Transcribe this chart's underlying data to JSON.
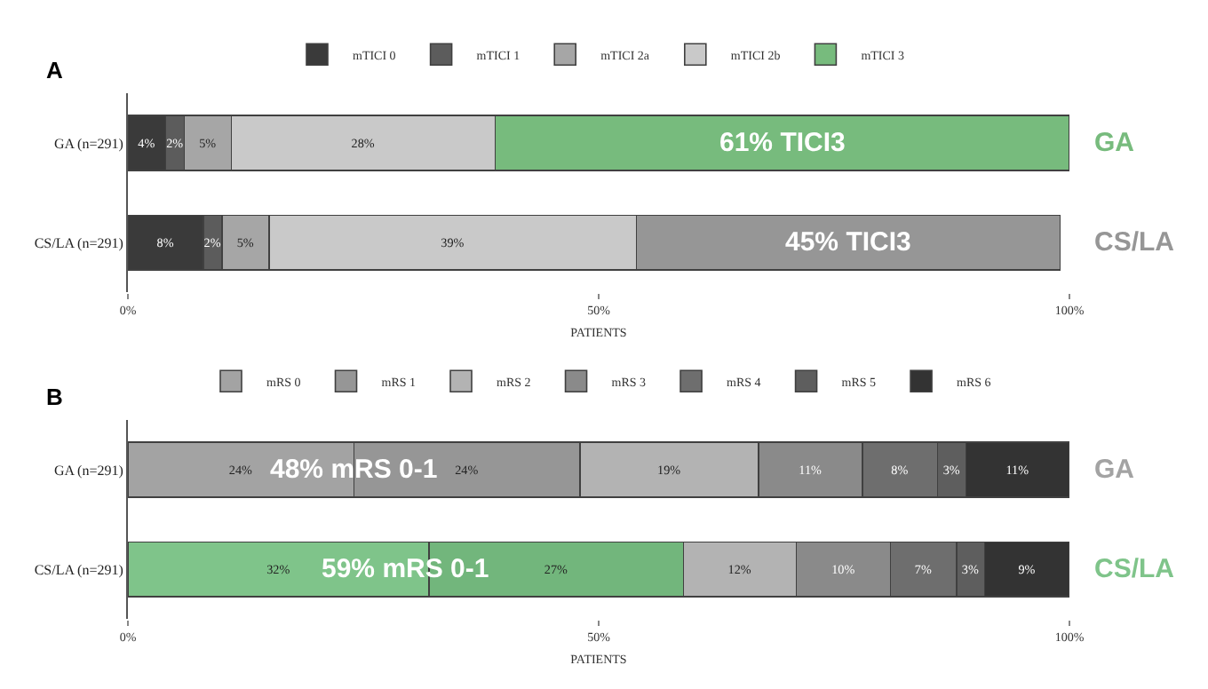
{
  "chart_data": [
    {
      "type": "bar",
      "orientation": "horizontal",
      "stacked": true,
      "title": "A",
      "xlabel": "PATIENTS",
      "categories": [
        "GA (n=291)",
        "CS/LA (n=291)"
      ],
      "xlim": [
        0,
        100
      ],
      "xticks": [
        {
          "value": 0,
          "label": "0%"
        },
        {
          "value": 50,
          "label": "50%"
        },
        {
          "value": 100,
          "label": "100%"
        }
      ],
      "legend": "top",
      "series": [
        {
          "name": "mTICI 0",
          "colors": [
            "#3a3a3a",
            "#3a3a3a"
          ],
          "values": [
            4,
            8
          ],
          "value_labels": [
            "4%",
            "8%"
          ]
        },
        {
          "name": "mTICI 1",
          "colors": [
            "#5c5c5c",
            "#5c5c5c"
          ],
          "values": [
            2,
            2
          ],
          "value_labels": [
            "2%",
            "2%"
          ]
        },
        {
          "name": "mTICI 2a",
          "colors": [
            "#a6a6a6",
            "#a6a6a6"
          ],
          "values": [
            5,
            5
          ],
          "value_labels": [
            "5%",
            "5%"
          ]
        },
        {
          "name": "mTICI 2b",
          "colors": [
            "#c9c9c9",
            "#c9c9c9"
          ],
          "values": [
            28,
            39
          ],
          "value_labels": [
            "28%",
            "39%"
          ]
        },
        {
          "name": "mTICI 3",
          "colors": [
            "#77bb7d",
            "#969696"
          ],
          "values": [
            61,
            45
          ],
          "value_labels": [
            null,
            null
          ]
        }
      ],
      "annotations": [
        "61% TICI3",
        "45% TICI3",
        "GA",
        "CS/LA"
      ]
    },
    {
      "type": "bar",
      "orientation": "horizontal",
      "stacked": true,
      "title": "B",
      "xlabel": "PATIENTS",
      "categories": [
        "GA (n=291)",
        "CS/LA (n=291)"
      ],
      "xlim": [
        0,
        100
      ],
      "xticks": [
        {
          "value": 0,
          "label": "0%"
        },
        {
          "value": 50,
          "label": "50%"
        },
        {
          "value": 100,
          "label": "100%"
        }
      ],
      "legend": "top",
      "series": [
        {
          "name": "mRS 0",
          "colors": [
            "#a3a3a3",
            "#7fc48a"
          ],
          "values": [
            24,
            32
          ],
          "value_labels": [
            "24%",
            "32%"
          ]
        },
        {
          "name": "mRS 1",
          "colors": [
            "#969696",
            "#72b67c"
          ],
          "values": [
            24,
            27
          ],
          "value_labels": [
            "24%",
            "27%"
          ]
        },
        {
          "name": "mRS 2",
          "colors": [
            "#b3b3b3",
            "#b3b3b3"
          ],
          "values": [
            19,
            12
          ],
          "value_labels": [
            "19%",
            "12%"
          ]
        },
        {
          "name": "mRS 3",
          "colors": [
            "#8a8a8a",
            "#8a8a8a"
          ],
          "values": [
            11,
            10
          ],
          "value_labels": [
            "11%",
            "10%"
          ]
        },
        {
          "name": "mRS 4",
          "colors": [
            "#6e6e6e",
            "#6e6e6e"
          ],
          "values": [
            8,
            7
          ],
          "value_labels": [
            "8%",
            "7%"
          ]
        },
        {
          "name": "mRS 5",
          "colors": [
            "#5e5e5e",
            "#5e5e5e"
          ],
          "values": [
            3,
            3
          ],
          "value_labels": [
            "3%",
            "3%"
          ]
        },
        {
          "name": "mRS 6",
          "colors": [
            "#333333",
            "#333333"
          ],
          "values": [
            11,
            9
          ],
          "value_labels": [
            "11%",
            "9%"
          ]
        }
      ],
      "annotations": [
        "48% mRS 0-1",
        "59% mRS 0-1",
        "GA",
        "CS/LA"
      ]
    }
  ]
}
